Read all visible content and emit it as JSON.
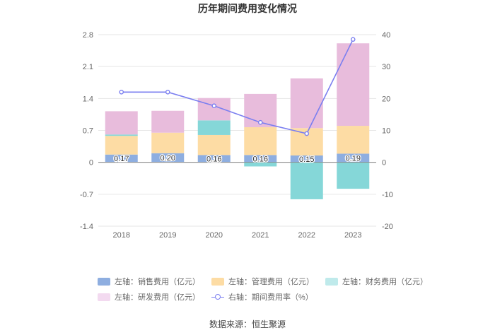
{
  "chart_data": {
    "type": "bar",
    "title": "历年期间费用变化情况",
    "categories": [
      "2018",
      "2019",
      "2020",
      "2021",
      "2022",
      "2023"
    ],
    "series": [
      {
        "name": "左轴：销售费用（亿元）",
        "axis": "left",
        "color": "#8eaee0",
        "values": [
          0.17,
          0.2,
          0.16,
          0.16,
          0.15,
          0.19
        ]
      },
      {
        "name": "左轴：管理费用（亿元）",
        "axis": "left",
        "color": "#fddca4",
        "values": [
          0.41,
          0.45,
          0.44,
          0.61,
          0.6,
          0.61
        ]
      },
      {
        "name": "左轴：财务费用（亿元）",
        "axis": "left",
        "color": "#85d7d8",
        "values": [
          0.03,
          0.0,
          0.32,
          -0.09,
          -0.81,
          -0.58
        ]
      },
      {
        "name": "左轴：研发费用（亿元）",
        "axis": "left",
        "color": "#e8bcdc",
        "values": [
          0.51,
          0.48,
          0.49,
          0.73,
          1.09,
          1.81
        ]
      },
      {
        "name": "右轴：期间费用率（%）",
        "axis": "right",
        "type": "line",
        "color": "#7b7ff0",
        "values": [
          22.0,
          22.0,
          17.7,
          12.5,
          9.0,
          38.5
        ]
      }
    ],
    "bar_labels": [
      "0.17",
      "0.20",
      "0.16",
      "0.16",
      "0.15",
      "0.19"
    ],
    "left_axis": {
      "min": -1.4,
      "max": 2.8,
      "ticks": [
        "-1.4",
        "-0.7",
        "0",
        "0.7",
        "1.4",
        "2.1",
        "2.8"
      ]
    },
    "right_axis": {
      "min": -20,
      "max": 40,
      "ticks": [
        "-20",
        "-10",
        "0",
        "10",
        "20",
        "30",
        "40"
      ]
    },
    "source": "数据来源：恒生聚源"
  }
}
